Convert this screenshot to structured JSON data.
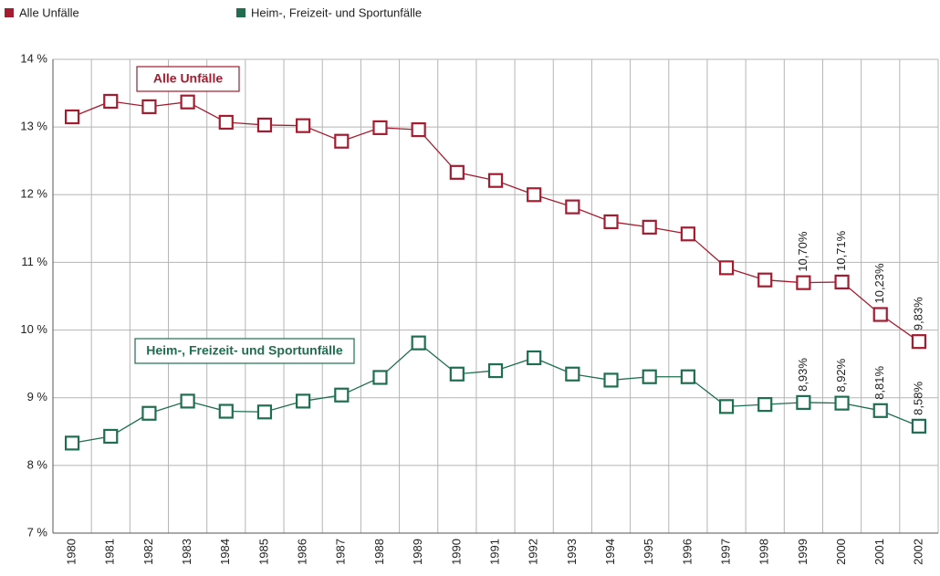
{
  "chart_data": {
    "type": "line",
    "categories": [
      "1980",
      "1981",
      "1982",
      "1983",
      "1984",
      "1985",
      "1986",
      "1987",
      "1988",
      "1989",
      "1990",
      "1991",
      "1992",
      "1993",
      "1994",
      "1995",
      "1996",
      "1997",
      "1998",
      "1999",
      "2000",
      "2001",
      "2002"
    ],
    "series": [
      {
        "name": "Alle Unfälle",
        "color": "#a51c30",
        "values": [
          13.15,
          13.38,
          13.3,
          13.37,
          13.07,
          13.03,
          13.02,
          12.79,
          12.99,
          12.96,
          12.33,
          12.21,
          12.0,
          11.82,
          11.6,
          11.52,
          11.42,
          10.92,
          10.74,
          10.7,
          10.71,
          10.23,
          9.83
        ],
        "value_labels": [
          null,
          null,
          null,
          null,
          null,
          null,
          null,
          null,
          null,
          null,
          null,
          null,
          null,
          null,
          null,
          null,
          null,
          null,
          null,
          "10,70%",
          "10,71%",
          "10,23%",
          "9,83%"
        ]
      },
      {
        "name": "Heim-, Freizeit- und Sportunfälle",
        "color": "#1e6e4f",
        "values": [
          8.33,
          8.43,
          8.77,
          8.95,
          8.8,
          8.79,
          8.95,
          9.04,
          9.3,
          9.81,
          9.35,
          9.4,
          9.59,
          9.35,
          9.26,
          9.31,
          9.31,
          8.87,
          8.9,
          8.93,
          8.92,
          8.81,
          8.58
        ],
        "value_labels": [
          null,
          null,
          null,
          null,
          null,
          null,
          null,
          null,
          null,
          null,
          null,
          null,
          null,
          null,
          null,
          null,
          null,
          null,
          null,
          "8,93%",
          "8,92%",
          "8,81%",
          "8,58%"
        ]
      }
    ],
    "ylim": [
      7,
      14
    ],
    "yticks": [
      {
        "value": 7,
        "label": "7 %"
      },
      {
        "value": 8,
        "label": "8 %"
      },
      {
        "value": 9,
        "label": "9 %"
      },
      {
        "value": 10,
        "label": "10 %"
      },
      {
        "value": 11,
        "label": "11 %"
      },
      {
        "value": 12,
        "label": "12 %"
      },
      {
        "value": 13,
        "label": "13 %"
      },
      {
        "value": 14,
        "label": "14 %"
      }
    ],
    "grid": true,
    "legend": "top-left"
  }
}
